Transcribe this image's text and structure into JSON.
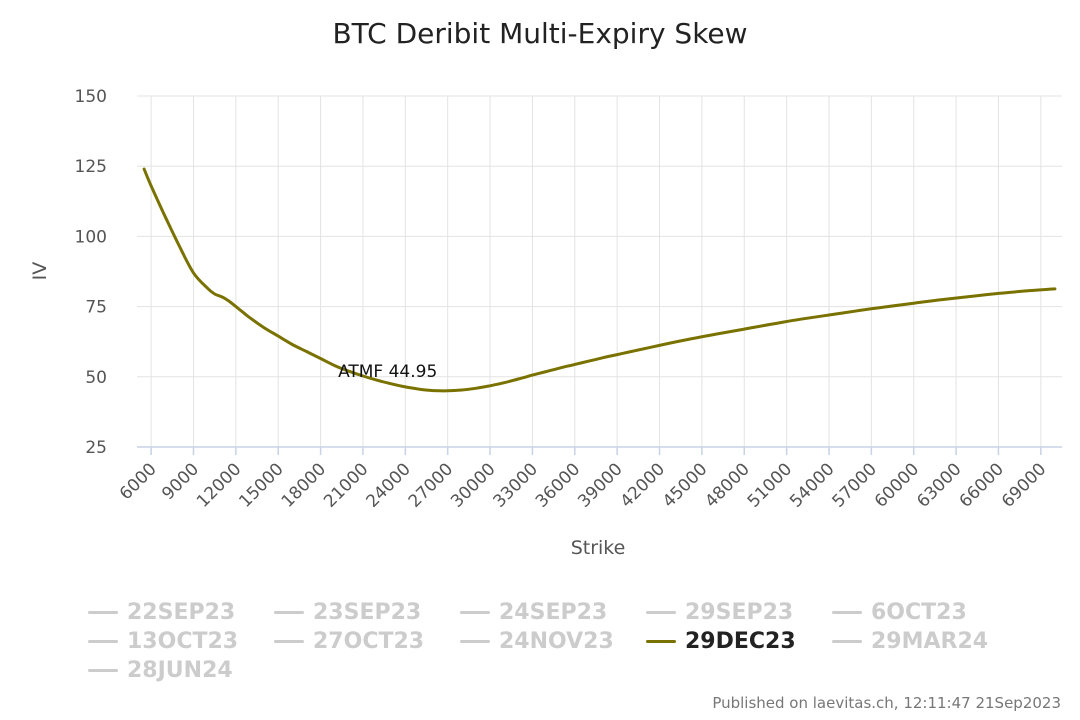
{
  "chart_data": {
    "type": "line",
    "title": "BTC Deribit Multi-Expiry Skew",
    "xlabel": "Strike",
    "ylabel": "IV",
    "xlim": [
      5000,
      70500
    ],
    "ylim": [
      25,
      150
    ],
    "y_ticks": [
      25,
      50,
      75,
      100,
      125,
      150
    ],
    "x_ticks": [
      6000,
      9000,
      12000,
      15000,
      18000,
      21000,
      24000,
      27000,
      30000,
      33000,
      36000,
      39000,
      42000,
      45000,
      48000,
      51000,
      54000,
      57000,
      60000,
      63000,
      66000,
      69000
    ],
    "grid": true,
    "legend_position": "bottom",
    "series": [
      {
        "name": "29DEC23",
        "color": "#7a7200",
        "visible": true,
        "x": [
          5500,
          6000,
          7000,
          8000,
          9000,
          10000,
          10500,
          11000,
          11500,
          12000,
          12500,
          13000,
          14000,
          15000,
          16000,
          17000,
          18000,
          19000,
          20000,
          21000,
          22000,
          23000,
          24000,
          25000,
          26000,
          27000,
          28000,
          29000,
          30000,
          31000,
          32000,
          33000,
          34000,
          35000,
          36000,
          37000,
          38000,
          39000,
          40000,
          42000,
          44000,
          46000,
          48000,
          50000,
          52000,
          54000,
          56000,
          58000,
          60000,
          62000,
          64000,
          66000,
          68000,
          70000
        ],
        "y": [
          124,
          118,
          107,
          96.5,
          87,
          81.5,
          79.5,
          78.5,
          77,
          75,
          73,
          71,
          67.5,
          64.5,
          61.5,
          59,
          56.5,
          54,
          52,
          50.3,
          48.8,
          47.5,
          46.4,
          45.6,
          45.1,
          45.0,
          45.3,
          45.9,
          46.8,
          47.9,
          49.2,
          50.6,
          51.9,
          53.2,
          54.4,
          55.6,
          56.8,
          57.9,
          59.0,
          61.2,
          63.3,
          65.2,
          67.0,
          68.8,
          70.5,
          72.0,
          73.5,
          74.9,
          76.2,
          77.5,
          78.6,
          79.7,
          80.6,
          81.3
        ]
      }
    ],
    "annotation": {
      "text": "ATMF 44.95",
      "x": 27000,
      "y": 44.95
    }
  },
  "legend": [
    {
      "label": "22SEP23",
      "active": false
    },
    {
      "label": "23SEP23",
      "active": false
    },
    {
      "label": "24SEP23",
      "active": false
    },
    {
      "label": "29SEP23",
      "active": false
    },
    {
      "label": "6OCT23",
      "active": false
    },
    {
      "label": "13OCT23",
      "active": false
    },
    {
      "label": "27OCT23",
      "active": false
    },
    {
      "label": "24NOV23",
      "active": false
    },
    {
      "label": "29DEC23",
      "active": true
    },
    {
      "label": "29MAR24",
      "active": false
    },
    {
      "label": "28JUN24",
      "active": false
    }
  ],
  "credits": "Published on laevitas.ch, 12:11:47 21Sep2023"
}
